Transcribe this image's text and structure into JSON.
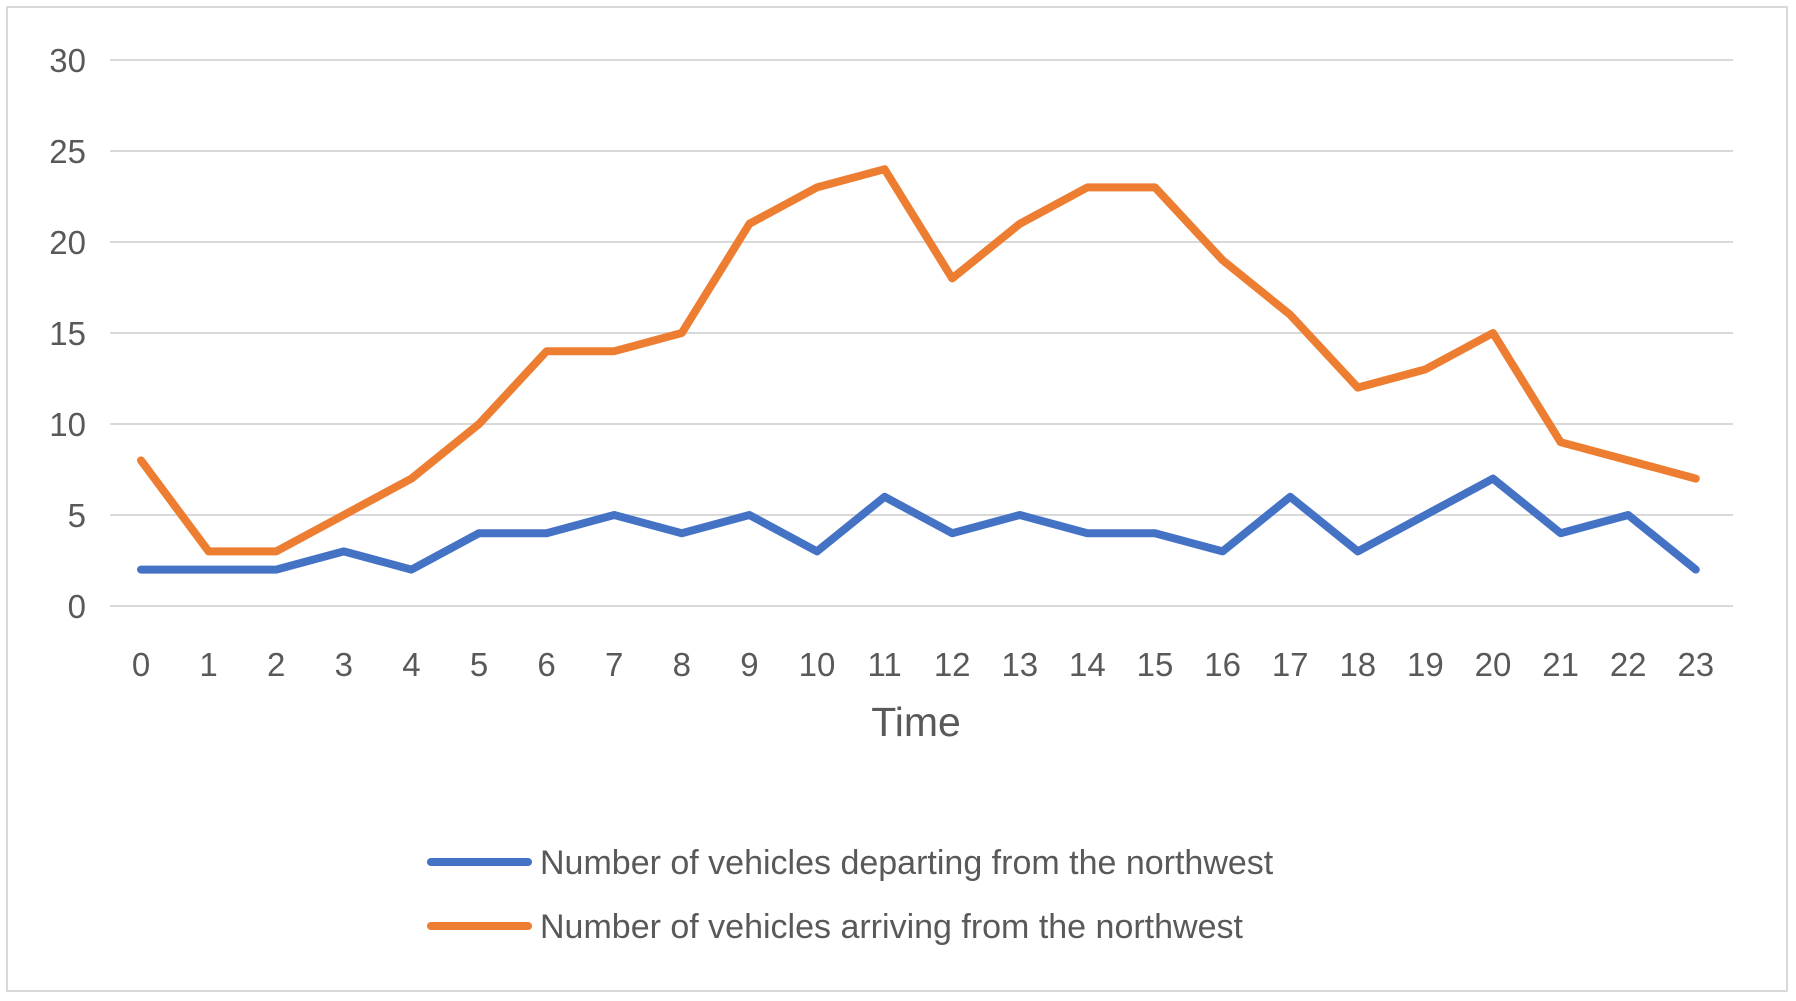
{
  "chart_data": {
    "type": "line",
    "title": "",
    "xlabel": "Time",
    "ylabel": "",
    "categories": [
      "0",
      "1",
      "2",
      "3",
      "4",
      "5",
      "6",
      "7",
      "8",
      "9",
      "10",
      "11",
      "12",
      "13",
      "14",
      "15",
      "16",
      "17",
      "18",
      "19",
      "20",
      "21",
      "22",
      "23"
    ],
    "ylim": [
      0,
      30
    ],
    "yticks": [
      "0",
      "5",
      "10",
      "15",
      "20",
      "25",
      "30"
    ],
    "grid": true,
    "legend_position": "bottom",
    "series": [
      {
        "name": "Number of vehicles departing from the northwest",
        "color": "#4472c4",
        "values": [
          2,
          2,
          2,
          3,
          2,
          4,
          4,
          5,
          4,
          5,
          3,
          6,
          4,
          5,
          4,
          4,
          3,
          6,
          3,
          5,
          7,
          4,
          5,
          2
        ]
      },
      {
        "name": "Number of vehicles arriving from the northwest",
        "color": "#ed7d31",
        "values": [
          8,
          3,
          3,
          5,
          7,
          10,
          14,
          14,
          15,
          21,
          23,
          24,
          18,
          21,
          23,
          23,
          19,
          16,
          12,
          13,
          15,
          9,
          8,
          7
        ]
      }
    ]
  }
}
